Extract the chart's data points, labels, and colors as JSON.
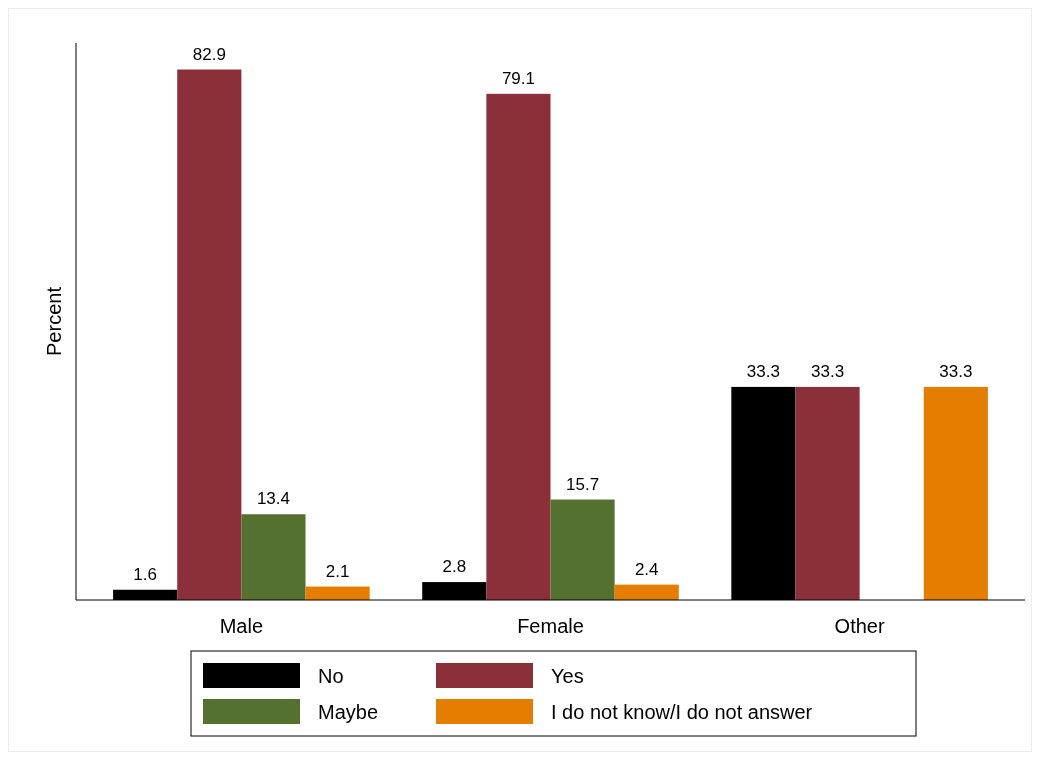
{
  "chart_data": {
    "type": "bar",
    "ylabel": "Percent",
    "categories": [
      "Male",
      "Female",
      "Other"
    ],
    "relative": false,
    "data_labels": true,
    "legend": "bottom",
    "series": [
      {
        "name": "No",
        "color": "#000000",
        "values": [
          1.6,
          2.8,
          33.3
        ]
      },
      {
        "name": "Yes",
        "color": "#8b3039",
        "values": [
          82.9,
          79.1,
          33.3
        ]
      },
      {
        "name": "Maybe",
        "color": "#55712f",
        "values": [
          13.4,
          15.7,
          null
        ]
      },
      {
        "name": "I do not know/I do not answer",
        "color": "#e57d00",
        "values": [
          2.1,
          2.4,
          33.3
        ]
      }
    ]
  }
}
